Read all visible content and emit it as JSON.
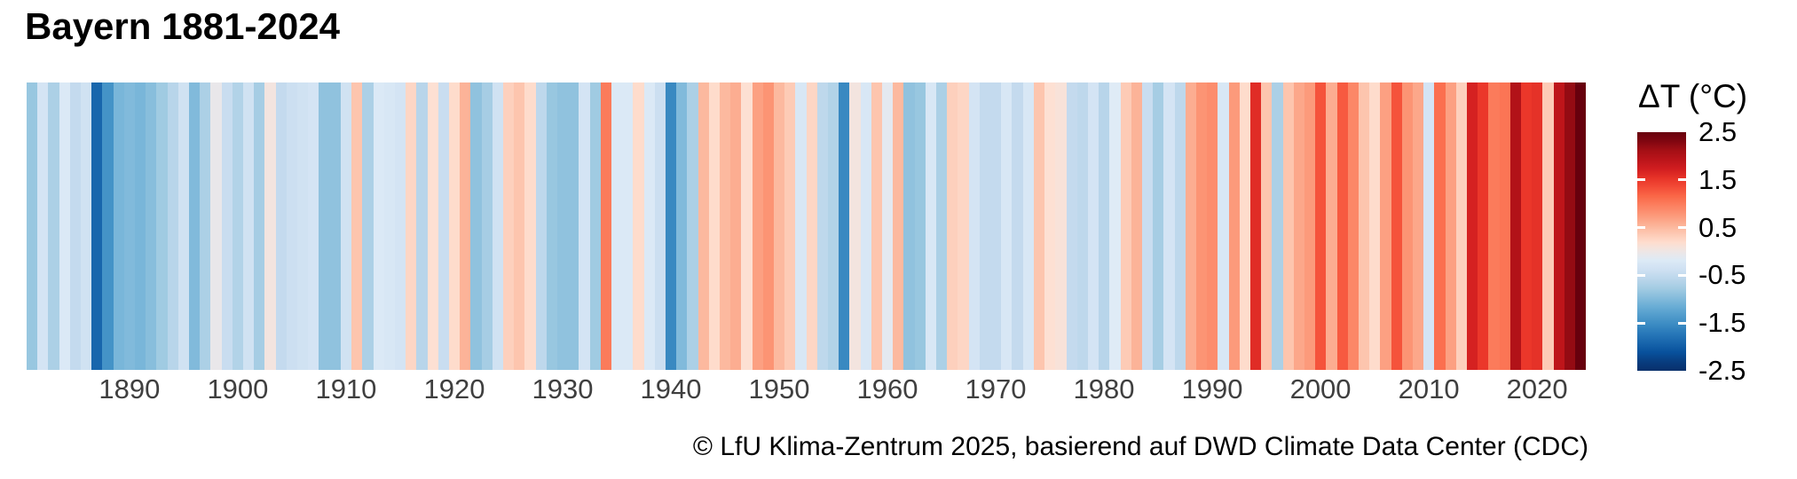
{
  "page": {
    "title": "Bayern 1881-2024",
    "caption": "© LfU Klima-Zentrum 2025, basierend auf DWD Climate Data Center (CDC)"
  },
  "legend": {
    "title": "ΔT (°C)",
    "tick_labels": [
      "2.5",
      "1.5",
      "0.5",
      "-0.5",
      "-1.5",
      "-2.5"
    ],
    "tick_values": [
      2.5,
      1.5,
      0.5,
      -0.5,
      -1.5,
      -2.5
    ],
    "range": [
      -2.5,
      2.5
    ]
  },
  "axis": {
    "tick_years": [
      1890,
      1900,
      1910,
      1920,
      1930,
      1940,
      1950,
      1960,
      1970,
      1980,
      1990,
      2000,
      2010,
      2020
    ]
  },
  "chart_data": {
    "type": "heatmap",
    "subtype": "warming-stripes",
    "title": "Bayern 1881-2024",
    "ylabel": "ΔT (°C)",
    "unit": "°C",
    "year_start": 1881,
    "year_end": 2024,
    "color_domain": [
      -2.6,
      2.6
    ],
    "legend_position": "right",
    "grid": false,
    "palette": [
      "#08306b",
      "#08519c",
      "#2171b5",
      "#4292c6",
      "#6baed6",
      "#9ecae1",
      "#c6dbef",
      "#deebf7",
      "#fee0d2",
      "#fcbba1",
      "#fc9272",
      "#fb6a4a",
      "#ef3b2c",
      "#cb181d",
      "#a50f15",
      "#67000d"
    ],
    "values": [
      -0.85,
      -0.3,
      -0.7,
      -0.2,
      -0.5,
      -0.35,
      -1.9,
      -1.45,
      -1.05,
      -1.0,
      -1.05,
      -0.95,
      -0.8,
      -0.6,
      -0.35,
      -1.0,
      -0.7,
      -0.05,
      -0.45,
      -0.65,
      -0.35,
      -0.75,
      0.05,
      -0.5,
      -0.4,
      -0.35,
      -0.3,
      -0.9,
      -0.9,
      -0.35,
      0.4,
      -0.7,
      -0.2,
      -0.25,
      -0.3,
      0.25,
      -0.6,
      0.15,
      -0.45,
      0.2,
      0.55,
      -0.9,
      -0.75,
      -0.35,
      0.3,
      0.4,
      0.2,
      -0.55,
      -0.85,
      -0.9,
      -0.9,
      -0.3,
      -0.8,
      1.0,
      -0.2,
      -0.2,
      0.2,
      -0.2,
      -0.4,
      -1.55,
      -1.0,
      -0.7,
      0.5,
      0.2,
      0.5,
      0.6,
      0.15,
      0.7,
      0.8,
      0.5,
      0.35,
      -0.25,
      0.25,
      -0.55,
      -0.65,
      -1.55,
      0.05,
      -0.25,
      0.4,
      -0.1,
      0.5,
      -0.9,
      -0.85,
      -0.25,
      -0.7,
      0.3,
      0.25,
      -0.3,
      -0.5,
      -0.5,
      -0.25,
      -0.5,
      -0.25,
      0.4,
      0.15,
      0.1,
      -0.5,
      -0.55,
      -0.3,
      -0.6,
      -0.15,
      0.35,
      0.55,
      -0.45,
      -0.75,
      -0.3,
      -0.55,
      0.6,
      0.8,
      0.85,
      -0.25,
      0.75,
      0.2,
      1.6,
      0.4,
      -0.7,
      0.4,
      0.65,
      0.75,
      1.3,
      0.6,
      1.25,
      0.9,
      0.4,
      0.2,
      0.7,
      1.3,
      0.8,
      0.65,
      -0.3,
      1.1,
      0.7,
      0.3,
      1.7,
      1.5,
      1.0,
      1.05,
      2.0,
      1.5,
      1.55,
      0.35,
      1.9,
      2.2,
      2.45
    ]
  }
}
